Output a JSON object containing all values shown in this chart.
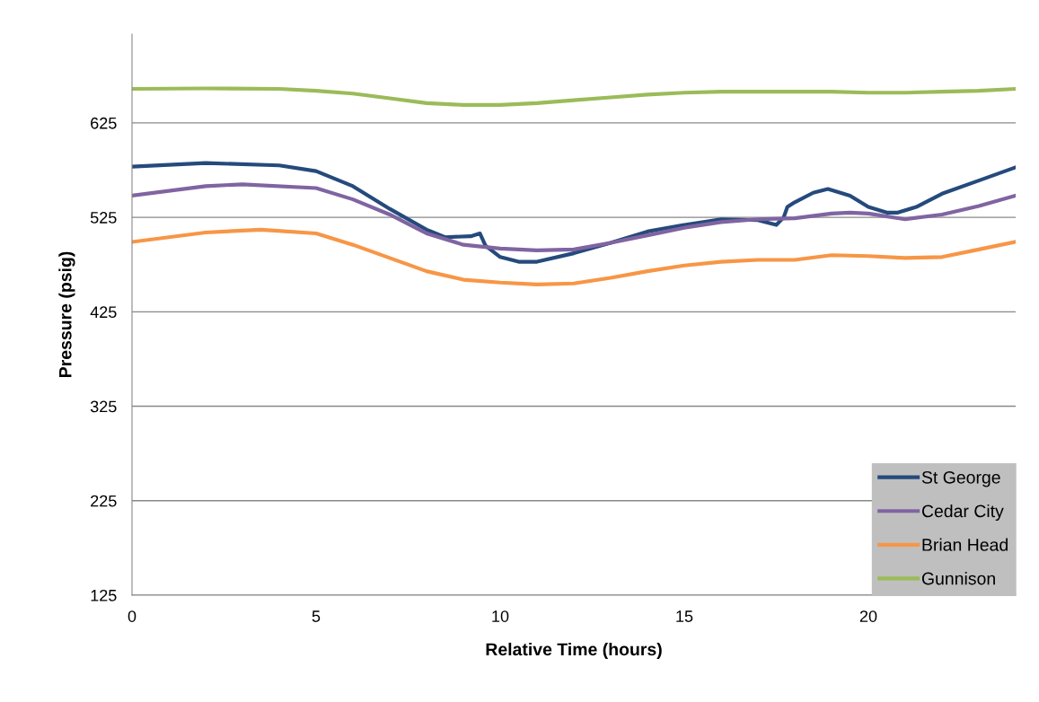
{
  "chart_data": {
    "type": "line",
    "xlabel": "Relative Time (hours)",
    "ylabel": "Pressure (psig)",
    "xlim": [
      0,
      24
    ],
    "xticks": [
      0,
      5,
      10,
      15,
      20
    ],
    "ylim": [
      125,
      719
    ],
    "yticks": [
      125,
      225,
      325,
      425,
      525,
      625
    ],
    "grid": "y",
    "legend": "bottom right",
    "marker": "none",
    "line_style": "solid",
    "series": [
      {
        "name": "St George",
        "color": "#254a7c",
        "x": [
          0,
          2,
          4,
          5,
          6,
          7,
          8,
          8.5,
          9.2,
          9.45,
          9.6,
          10,
          10.5,
          11,
          12,
          13,
          14,
          15,
          16,
          17,
          17.5,
          17.7,
          17.8,
          18,
          18.5,
          18.9,
          19.5,
          20,
          20.5,
          20.8,
          21.3,
          22,
          23,
          24
        ],
        "values": [
          578.7,
          582.5,
          580,
          574,
          558,
          534,
          512,
          504,
          505,
          508,
          495,
          483,
          478,
          478,
          487,
          498,
          510,
          517,
          523,
          522,
          517,
          525,
          536,
          541,
          551,
          555,
          548,
          536,
          530,
          530,
          536,
          550,
          564,
          578
        ]
      },
      {
        "name": "Cedar City",
        "color": "#8064a2",
        "x": [
          0,
          2,
          3,
          5,
          6,
          7,
          8,
          9,
          10,
          11,
          12,
          13,
          14,
          15,
          16,
          17,
          18,
          19,
          19.5,
          20,
          21,
          22,
          23,
          24
        ],
        "values": [
          548,
          558,
          560,
          556,
          544,
          528,
          508,
          496,
          492,
          490,
          491,
          498,
          506,
          514,
          520,
          523,
          524,
          529,
          530,
          529,
          523,
          528,
          537,
          548
        ]
      },
      {
        "name": "Brian Head",
        "color": "#f79646",
        "x": [
          0,
          2,
          3.5,
          5,
          6,
          7,
          8,
          9,
          10,
          11,
          12,
          13,
          14,
          15,
          16,
          17,
          18,
          19,
          20,
          21,
          22,
          23,
          24
        ],
        "values": [
          499,
          509,
          512,
          508,
          496,
          482,
          468,
          459,
          456,
          454,
          455,
          461,
          468,
          474,
          478,
          480,
          480,
          485,
          484,
          482,
          483,
          491,
          499
        ]
      },
      {
        "name": "Gunnison",
        "color": "#9bbb59",
        "x": [
          0,
          2,
          4,
          5,
          6,
          7,
          8,
          9,
          10,
          11,
          12,
          13,
          14,
          15,
          16,
          17,
          18,
          19,
          20,
          21,
          22,
          23,
          24
        ],
        "values": [
          661,
          661.5,
          661,
          659,
          656,
          651,
          646,
          644,
          644,
          646,
          649,
          652,
          655,
          657,
          658,
          658,
          658,
          658,
          657,
          657,
          658,
          659,
          661
        ]
      }
    ]
  }
}
